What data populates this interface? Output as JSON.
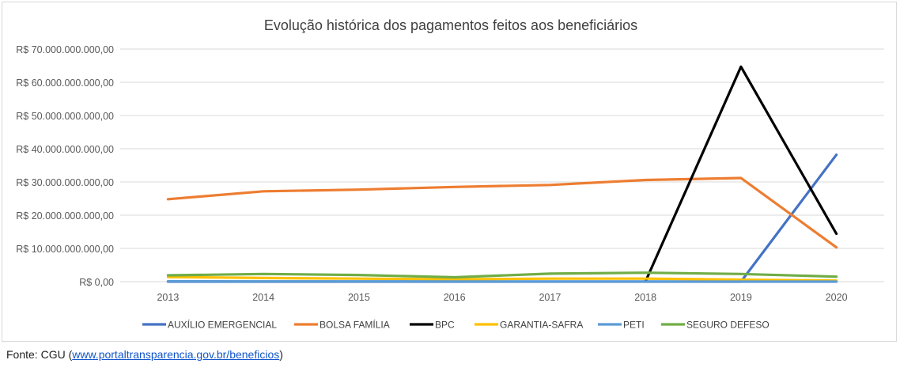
{
  "chart_data": {
    "type": "line",
    "title": "Evolução histórica dos pagamentos feitos aos beneficiários",
    "xlabel": "",
    "ylabel": "",
    "x": [
      "2013",
      "2014",
      "2015",
      "2016",
      "2017",
      "2018",
      "2019",
      "2020"
    ],
    "ylim": [
      0,
      70000000000
    ],
    "yticks": [
      {
        "value": 0,
        "label": "R$ 0,00"
      },
      {
        "value": 10000000000,
        "label": "R$ 10.000.000.000,00"
      },
      {
        "value": 20000000000,
        "label": "R$ 20.000.000.000,00"
      },
      {
        "value": 30000000000,
        "label": "R$ 30.000.000.000,00"
      },
      {
        "value": 40000000000,
        "label": "R$ 40.000.000.000,00"
      },
      {
        "value": 50000000000,
        "label": "R$ 50.000.000.000,00"
      },
      {
        "value": 60000000000,
        "label": "R$ 60.000.000.000,00"
      },
      {
        "value": 70000000000,
        "label": "R$ 70.000.000.000,00"
      }
    ],
    "grid": true,
    "legend_position": "bottom",
    "series": [
      {
        "name": "AUXÍLIO EMERGENCIAL",
        "color": "#4472c4",
        "values": [
          0,
          0,
          0,
          0,
          0,
          0,
          0,
          38200000000
        ]
      },
      {
        "name": "BOLSA FAMÍLIA",
        "color": "#ed7d31",
        "values": [
          24800000000,
          27200000000,
          27700000000,
          28500000000,
          29100000000,
          30600000000,
          31200000000,
          10300000000
        ]
      },
      {
        "name": "BPC",
        "color": "#000000",
        "values": [
          null,
          null,
          null,
          null,
          null,
          0,
          64700000000,
          14400000000
        ]
      },
      {
        "name": "GARANTIA-SAFRA",
        "color": "#ffc000",
        "values": [
          1400000000,
          1100000000,
          900000000,
          700000000,
          900000000,
          900000000,
          600000000,
          300000000
        ]
      },
      {
        "name": "PETI",
        "color": "#5b9bd5",
        "values": [
          100000000,
          80000000,
          60000000,
          40000000,
          30000000,
          20000000,
          10000000,
          0
        ]
      },
      {
        "name": "SEGURO DEFESO",
        "color": "#70ad47",
        "values": [
          1900000000,
          2300000000,
          2000000000,
          1300000000,
          2400000000,
          2700000000,
          2300000000,
          1500000000
        ]
      }
    ]
  },
  "source": {
    "prefix": "Fonte: CGU (",
    "link_text": "www.portaltransparencia.gov.br/beneficios",
    "suffix": ")"
  }
}
